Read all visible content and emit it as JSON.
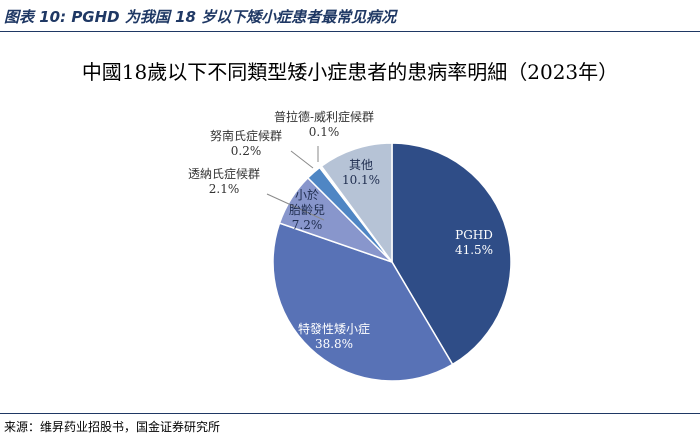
{
  "figure_title": "图表 10: PGHD 为我国 18 岁以下矮小症患者最常见病况",
  "source": "来源：维昇药业招股书，国金证券研究所",
  "chart_data": {
    "type": "pie",
    "title": "中國18歲以下不同類型矮小症患者的患病率明細（2023年）",
    "slices": [
      {
        "label": "PGHD",
        "value": 41.5,
        "display": "41.5%",
        "color": "#2f4d87"
      },
      {
        "label": "特發性矮小症",
        "value": 38.8,
        "display": "38.8%",
        "color": "#5872b6"
      },
      {
        "label": "小於胎齡兒",
        "value": 7.2,
        "display": "7.2%",
        "color": "#8896cc"
      },
      {
        "label": "透納氏症候群",
        "value": 2.1,
        "display": "2.1%",
        "color": "#4f86c4"
      },
      {
        "label": "努南氏症候群",
        "value": 0.2,
        "display": "0.2%",
        "color": "#6fa0d6"
      },
      {
        "label": "普拉德-威利症候群",
        "value": 0.1,
        "display": "0.1%",
        "color": "#8db4e0"
      },
      {
        "label": "其他",
        "value": 10.1,
        "display": "10.1%",
        "color": "#b6c3d6"
      }
    ]
  }
}
